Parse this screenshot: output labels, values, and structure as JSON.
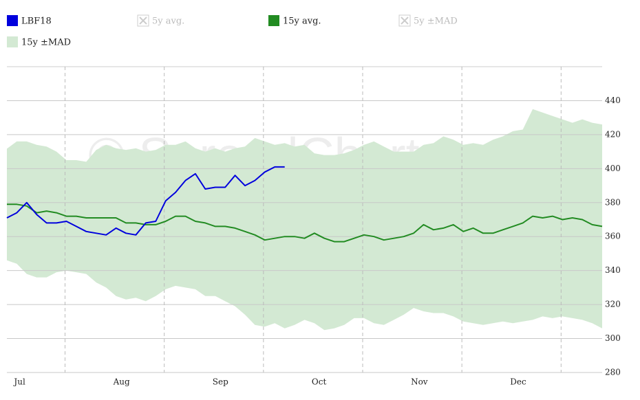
{
  "chart_data": {
    "type": "line",
    "watermark": "© SpreadCharts.com",
    "categories": [
      null,
      "Jul",
      null,
      null,
      null,
      null,
      null,
      null,
      null,
      null,
      null,
      "Aug",
      null,
      null,
      null,
      null,
      null,
      null,
      null,
      null,
      null,
      "Sep",
      null,
      null,
      null,
      null,
      null,
      null,
      null,
      null,
      null,
      "Oct",
      null,
      null,
      null,
      null,
      null,
      null,
      null,
      null,
      null,
      "Nov",
      null,
      null,
      null,
      null,
      null,
      null,
      null,
      null,
      null,
      "Dec",
      null,
      null,
      null,
      null,
      null,
      null,
      null,
      null,
      null
    ],
    "ylim": [
      280,
      460
    ],
    "yticks": [
      280,
      300,
      320,
      340,
      360,
      380,
      400,
      420,
      440
    ],
    "grid": true,
    "legend": "top",
    "bands": [
      {
        "name": "5y ±MAD",
        "color": "#cccccc",
        "visible": false,
        "upper": null,
        "lower": null
      },
      {
        "name": "15y ±MAD",
        "color": "#d3e9d3",
        "visible": true,
        "upper": [
          411.7,
          416,
          416,
          414,
          413,
          410,
          405,
          405,
          404,
          411,
          414,
          412,
          411,
          412,
          410,
          411,
          414,
          414,
          416,
          412,
          410,
          412,
          410,
          412,
          413,
          418,
          416,
          414,
          415,
          413,
          414,
          409,
          408,
          408,
          409,
          411,
          414,
          416,
          413,
          410,
          410,
          410,
          414,
          415,
          419,
          417,
          414,
          415,
          414,
          417,
          419,
          422,
          423,
          435,
          433,
          431,
          429,
          427,
          429,
          427,
          426
        ],
        "lower": [
          346,
          344,
          338,
          336,
          336,
          339,
          340,
          339,
          338,
          333,
          330,
          325,
          323,
          324,
          322,
          325,
          329,
          331,
          330,
          329,
          325,
          325,
          322,
          319,
          314,
          308,
          307,
          309,
          306,
          308,
          311,
          309,
          305,
          306,
          308,
          312,
          312,
          309,
          308,
          311,
          314,
          318,
          316,
          315,
          315,
          313,
          310,
          309,
          308,
          309,
          310,
          309,
          310,
          311,
          313,
          312,
          313,
          312,
          311,
          309,
          306
        ]
      }
    ],
    "series": [
      {
        "name": "LBF18",
        "color": "#0000dd",
        "visible": true,
        "values": [
          371,
          374,
          380,
          373,
          368,
          368,
          369,
          366,
          363,
          362,
          361,
          365,
          362,
          361,
          368,
          369,
          381,
          386,
          393,
          397,
          388,
          389,
          389,
          396,
          390,
          393,
          398,
          401,
          401,
          null,
          null,
          null,
          null,
          null,
          null,
          null,
          null,
          null,
          null,
          null,
          null,
          null,
          null,
          null,
          null,
          null,
          null,
          null,
          null,
          null,
          null,
          null,
          null,
          null,
          null,
          null,
          null,
          null,
          null,
          null,
          null
        ]
      },
      {
        "name": "5y avg.",
        "color": "#cccccc",
        "visible": false,
        "values": null
      },
      {
        "name": "15y avg.",
        "color": "#228b22",
        "visible": true,
        "values": [
          379,
          379,
          378,
          374,
          375,
          374,
          372,
          372,
          371,
          371,
          371,
          371,
          368,
          368,
          367,
          367,
          369,
          372,
          372,
          369,
          368,
          366,
          366,
          365,
          363,
          361,
          358,
          359,
          360,
          360,
          359,
          362,
          359,
          357,
          357,
          359,
          361,
          360,
          358,
          359,
          360,
          362,
          367,
          364,
          365,
          367,
          363,
          365,
          362,
          362,
          364,
          366,
          368,
          372,
          371,
          372,
          370,
          371,
          370,
          367,
          366
        ]
      }
    ]
  }
}
